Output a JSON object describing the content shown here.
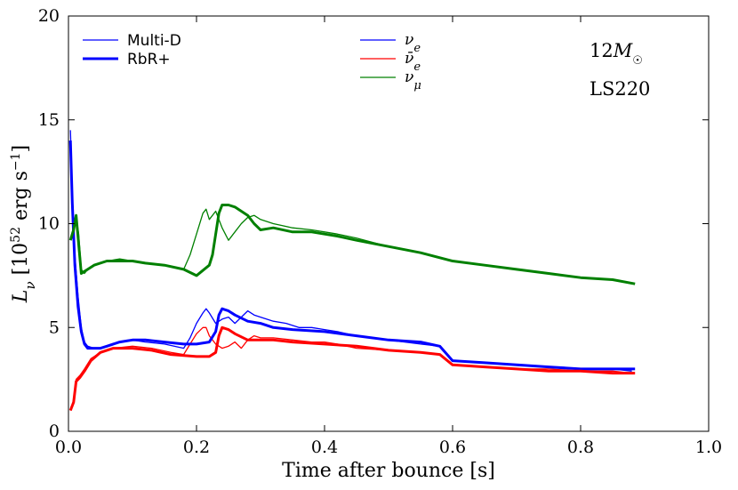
{
  "chart_data": {
    "type": "line",
    "xlabel": "Time after bounce [s]",
    "ylabel": "L_ν [10^52 erg s^-1]",
    "xlim": [
      0.0,
      1.0
    ],
    "ylim": [
      0,
      20
    ],
    "x_ticks": [
      "0.0",
      "0.2",
      "0.4",
      "0.6",
      "0.8",
      "1.0"
    ],
    "y_ticks": [
      "0",
      "5",
      "10",
      "15",
      "20"
    ],
    "grid": false,
    "annotations": [
      "12M☉",
      "LS220"
    ],
    "style_legend": [
      {
        "label": "Multi-D",
        "style": "thin"
      },
      {
        "label": "RbR+",
        "style": "thick"
      }
    ],
    "flavor_legend": [
      {
        "label": "ν_e",
        "color": "#0000ff"
      },
      {
        "label": "ν̄_e",
        "color": "#ff0000"
      },
      {
        "label": "ν_μ",
        "color": "#008000"
      }
    ],
    "series": [
      {
        "flavor": "ν_e",
        "model": "Multi-D",
        "color": "#0000ff",
        "x": [
          0.003,
          0.006,
          0.01,
          0.015,
          0.02,
          0.025,
          0.03,
          0.04,
          0.05,
          0.06,
          0.08,
          0.1,
          0.12,
          0.15,
          0.18,
          0.19,
          0.2,
          0.21,
          0.215,
          0.22,
          0.23,
          0.24,
          0.25,
          0.26,
          0.27,
          0.28,
          0.29,
          0.3,
          0.32,
          0.34,
          0.36,
          0.38,
          0.4,
          0.42,
          0.45,
          0.5,
          0.55,
          0.58,
          0.6,
          0.65,
          0.7,
          0.75,
          0.8,
          0.85,
          0.88
        ],
        "y": [
          14.5,
          11.5,
          8.5,
          6.5,
          5.0,
          4.3,
          4.1,
          4.0,
          4.0,
          4.1,
          4.3,
          4.4,
          4.3,
          4.2,
          4.0,
          4.5,
          5.2,
          5.7,
          5.9,
          5.7,
          5.2,
          5.4,
          5.5,
          5.2,
          5.5,
          5.8,
          5.6,
          5.5,
          5.3,
          5.2,
          5.0,
          5.0,
          4.9,
          4.8,
          4.6,
          4.4,
          4.2,
          4.1,
          3.4,
          3.3,
          3.2,
          3.1,
          3.0,
          3.0,
          2.9
        ]
      },
      {
        "flavor": "ν_e",
        "model": "RbR+",
        "color": "#0000ff",
        "x": [
          0.003,
          0.006,
          0.01,
          0.015,
          0.02,
          0.025,
          0.03,
          0.04,
          0.05,
          0.06,
          0.08,
          0.1,
          0.12,
          0.15,
          0.18,
          0.2,
          0.22,
          0.23,
          0.235,
          0.24,
          0.25,
          0.26,
          0.28,
          0.3,
          0.32,
          0.35,
          0.4,
          0.45,
          0.5,
          0.55,
          0.58,
          0.6,
          0.65,
          0.7,
          0.75,
          0.8,
          0.85,
          0.885
        ],
        "y": [
          14.0,
          11.0,
          8.0,
          6.0,
          4.8,
          4.2,
          4.0,
          4.0,
          4.0,
          4.1,
          4.3,
          4.4,
          4.4,
          4.3,
          4.2,
          4.2,
          4.3,
          4.8,
          5.6,
          5.9,
          5.8,
          5.6,
          5.3,
          5.2,
          5.0,
          4.9,
          4.8,
          4.6,
          4.4,
          4.3,
          4.1,
          3.4,
          3.3,
          3.2,
          3.1,
          3.0,
          3.0,
          3.0
        ]
      },
      {
        "flavor": "ν̄_e",
        "model": "Multi-D",
        "color": "#ff0000",
        "x": [
          0.003,
          0.008,
          0.012,
          0.018,
          0.025,
          0.035,
          0.05,
          0.07,
          0.1,
          0.13,
          0.16,
          0.18,
          0.19,
          0.2,
          0.21,
          0.215,
          0.22,
          0.23,
          0.24,
          0.25,
          0.26,
          0.27,
          0.28,
          0.29,
          0.3,
          0.32,
          0.35,
          0.38,
          0.4,
          0.42,
          0.45,
          0.5,
          0.55,
          0.58,
          0.6,
          0.65,
          0.7,
          0.75,
          0.8,
          0.85,
          0.88
        ],
        "y": [
          1.0,
          1.5,
          2.5,
          2.7,
          3.0,
          3.5,
          3.8,
          4.0,
          4.1,
          4.0,
          3.8,
          3.7,
          4.2,
          4.7,
          5.0,
          5.0,
          4.6,
          4.2,
          4.0,
          4.1,
          4.3,
          4.0,
          4.4,
          4.6,
          4.5,
          4.5,
          4.4,
          4.3,
          4.3,
          4.2,
          4.0,
          3.9,
          3.8,
          3.7,
          3.2,
          3.1,
          3.0,
          3.0,
          2.9,
          2.9,
          2.8
        ]
      },
      {
        "flavor": "ν̄_e",
        "model": "RbR+",
        "color": "#ff0000",
        "x": [
          0.003,
          0.008,
          0.012,
          0.018,
          0.025,
          0.035,
          0.05,
          0.07,
          0.1,
          0.13,
          0.16,
          0.2,
          0.22,
          0.23,
          0.235,
          0.24,
          0.25,
          0.26,
          0.28,
          0.3,
          0.32,
          0.35,
          0.4,
          0.45,
          0.5,
          0.55,
          0.58,
          0.6,
          0.65,
          0.7,
          0.75,
          0.8,
          0.85,
          0.885
        ],
        "y": [
          1.0,
          1.4,
          2.4,
          2.6,
          2.9,
          3.4,
          3.8,
          4.0,
          4.0,
          3.9,
          3.7,
          3.6,
          3.6,
          3.8,
          4.6,
          5.0,
          4.9,
          4.7,
          4.4,
          4.4,
          4.4,
          4.3,
          4.2,
          4.1,
          3.9,
          3.8,
          3.7,
          3.2,
          3.1,
          3.0,
          2.9,
          2.9,
          2.8,
          2.8
        ]
      },
      {
        "flavor": "ν_μ",
        "model": "Multi-D",
        "color": "#008000",
        "x": [
          0.003,
          0.008,
          0.012,
          0.016,
          0.02,
          0.025,
          0.03,
          0.04,
          0.06,
          0.08,
          0.1,
          0.12,
          0.15,
          0.18,
          0.19,
          0.2,
          0.21,
          0.215,
          0.22,
          0.23,
          0.24,
          0.25,
          0.26,
          0.27,
          0.28,
          0.29,
          0.3,
          0.32,
          0.35,
          0.38,
          0.4,
          0.42,
          0.45,
          0.5,
          0.55,
          0.6,
          0.65,
          0.7,
          0.75,
          0.8,
          0.85,
          0.88
        ],
        "y": [
          9.3,
          9.8,
          10.3,
          9.5,
          7.8,
          7.6,
          7.8,
          8.0,
          8.2,
          8.3,
          8.2,
          8.1,
          8.0,
          7.8,
          8.5,
          9.5,
          10.5,
          10.7,
          10.2,
          10.6,
          9.8,
          9.2,
          9.6,
          10.0,
          10.3,
          10.4,
          10.2,
          10.0,
          9.8,
          9.7,
          9.6,
          9.5,
          9.3,
          8.9,
          8.6,
          8.2,
          8.0,
          7.8,
          7.6,
          7.4,
          7.3,
          7.1
        ]
      },
      {
        "flavor": "ν_μ",
        "model": "RbR+",
        "color": "#008000",
        "x": [
          0.003,
          0.008,
          0.012,
          0.016,
          0.02,
          0.025,
          0.03,
          0.04,
          0.06,
          0.08,
          0.1,
          0.12,
          0.15,
          0.18,
          0.2,
          0.22,
          0.225,
          0.23,
          0.235,
          0.24,
          0.25,
          0.26,
          0.27,
          0.28,
          0.29,
          0.3,
          0.32,
          0.35,
          0.38,
          0.4,
          0.42,
          0.45,
          0.5,
          0.55,
          0.6,
          0.65,
          0.7,
          0.75,
          0.8,
          0.85,
          0.885
        ],
        "y": [
          9.2,
          9.7,
          10.4,
          9.0,
          7.6,
          7.7,
          7.8,
          8.0,
          8.2,
          8.2,
          8.2,
          8.1,
          8.0,
          7.8,
          7.5,
          8.0,
          8.5,
          9.5,
          10.5,
          10.9,
          10.9,
          10.8,
          10.6,
          10.4,
          10.0,
          9.7,
          9.8,
          9.6,
          9.6,
          9.5,
          9.4,
          9.2,
          8.9,
          8.6,
          8.2,
          8.0,
          7.8,
          7.6,
          7.4,
          7.3,
          7.1
        ]
      }
    ]
  }
}
